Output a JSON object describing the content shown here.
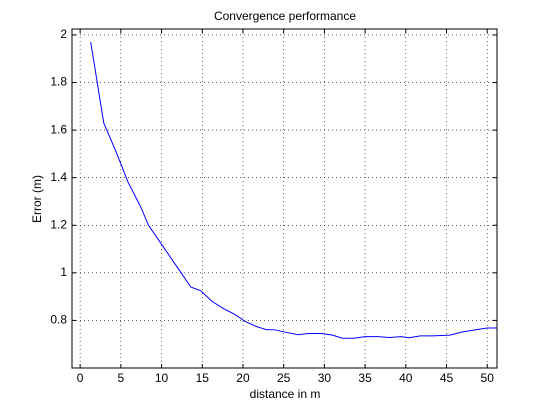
{
  "chart_data": {
    "type": "line",
    "title": "Convergence performance",
    "x_label": "distance in m",
    "y_label": "Error (m)",
    "xlim": [
      -1,
      51.2
    ],
    "ylim": [
      0.6,
      2.025
    ],
    "xticks": [
      0,
      5,
      10,
      15,
      20,
      25,
      30,
      35,
      40,
      45,
      50
    ],
    "yticks": [
      0.8,
      1,
      1.2,
      1.4,
      1.6,
      1.8,
      2
    ],
    "grid": true,
    "series": [
      {
        "color": "#0000ff",
        "x": [
          1.3,
          2.9,
          4.4,
          5.9,
          7.4,
          8.4,
          9.8,
          11,
          12.4,
          13.6,
          14.8,
          16.2,
          17.6,
          19,
          20.3,
          21.6,
          22.8,
          24,
          25.3,
          26.8,
          28,
          29.6,
          31,
          32.2,
          33.6,
          35,
          36.6,
          38,
          39.4,
          40.4,
          41.8,
          43.3,
          45.4,
          47,
          48.8,
          50,
          51.2
        ],
        "values": [
          1.97,
          1.63,
          1.51,
          1.38,
          1.28,
          1.2,
          1.13,
          1.07,
          1.0,
          0.94,
          0.925,
          0.88,
          0.85,
          0.825,
          0.795,
          0.775,
          0.762,
          0.76,
          0.75,
          0.74,
          0.745,
          0.745,
          0.738,
          0.725,
          0.725,
          0.732,
          0.732,
          0.728,
          0.732,
          0.727,
          0.735,
          0.735,
          0.738,
          0.752,
          0.762,
          0.768,
          0.768
        ]
      }
    ]
  }
}
